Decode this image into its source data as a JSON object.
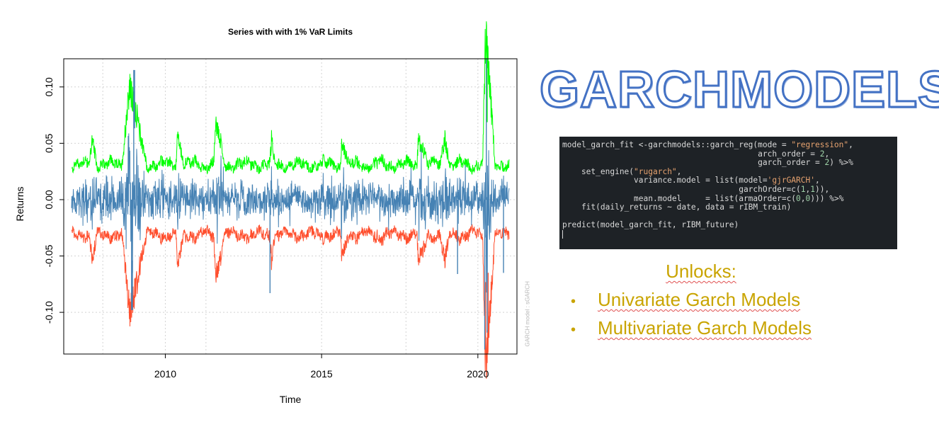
{
  "chart_data": {
    "type": "line",
    "title": "Series with with 1% VaR Limits",
    "xlabel": "Time",
    "ylabel": "Returns",
    "xlim": [
      2006.75,
      2021.25
    ],
    "ylim": [
      -0.137,
      0.125
    ],
    "x_ticks": [
      2010,
      2015,
      2020
    ],
    "x_tick_labels": [
      "2010",
      "2015",
      "2020"
    ],
    "y_ticks": [
      -0.1,
      -0.05,
      0.0,
      0.05,
      0.1
    ],
    "y_tick_labels": [
      "-0.10",
      "-0.05",
      "0.00",
      "0.05",
      "0.10"
    ],
    "grid": true,
    "legend": "none",
    "series": [
      {
        "role": "upper",
        "color": "#00ff00"
      },
      {
        "role": "returns",
        "color": "#4682b4"
      },
      {
        "role": "lower",
        "color": "#ff4f2e"
      }
    ],
    "x_start": 2007.0,
    "x_end": 2021.0,
    "base_vol": 0.0115,
    "episodes": [
      {
        "start": 2007.55,
        "peak": 2007.65,
        "end": 2007.85,
        "vol": 0.009
      },
      {
        "start": 2008.6,
        "peak": 2008.85,
        "end": 2009.4,
        "vol": 0.03
      },
      {
        "start": 2010.33,
        "peak": 2010.4,
        "end": 2010.6,
        "vol": 0.012
      },
      {
        "start": 2011.55,
        "peak": 2011.62,
        "end": 2011.9,
        "vol": 0.015
      },
      {
        "start": 2013.35,
        "peak": 2013.4,
        "end": 2013.5,
        "vol": 0.008
      },
      {
        "start": 2015.6,
        "peak": 2015.65,
        "end": 2015.85,
        "vol": 0.01
      },
      {
        "start": 2018.05,
        "peak": 2018.1,
        "end": 2018.4,
        "vol": 0.012
      },
      {
        "start": 2018.8,
        "peak": 2018.95,
        "end": 2019.1,
        "vol": 0.012
      },
      {
        "start": 2020.15,
        "peak": 2020.25,
        "end": 2020.55,
        "vol": 0.05
      }
    ],
    "spikes": [
      {
        "x": 2008.99,
        "y": 0.115
      },
      {
        "x": 2008.92,
        "y": -0.098
      },
      {
        "x": 2013.35,
        "y": -0.083
      },
      {
        "x": 2020.27,
        "y": 0.125
      },
      {
        "x": 2020.22,
        "y": -0.133
      },
      {
        "x": 2020.3,
        "y": -0.118
      },
      {
        "x": 2019.35,
        "y": -0.066
      },
      {
        "x": 2020.82,
        "y": -0.065
      }
    ],
    "watermark": "GARCH model : sGARCH"
  },
  "brand": {
    "title": "GARCHMODELS"
  },
  "code": {
    "lines": [
      "model_garch_fit <-garchmodels::garch_reg(mode = \"regression\",",
      "                                         arch_order = 2,",
      "                                         garch_order = 2) %>%",
      "    set_engine(\"rugarch\",",
      "               variance.model = list(model='gjrGARCH',",
      "                                     garchOrder=c(1,1)),",
      "               mean.model     = list(armaOrder=c(0,0))) %>%",
      "    fit(daily_returns ~ date, data = rIBM_train)",
      "",
      "predict(model_garch_fit, rIBM_future)"
    ]
  },
  "unlocks": {
    "heading": "Unlocks:",
    "items": [
      "Univariate Garch Models",
      "Multivariate Garch Models"
    ],
    "bullet": "•"
  }
}
